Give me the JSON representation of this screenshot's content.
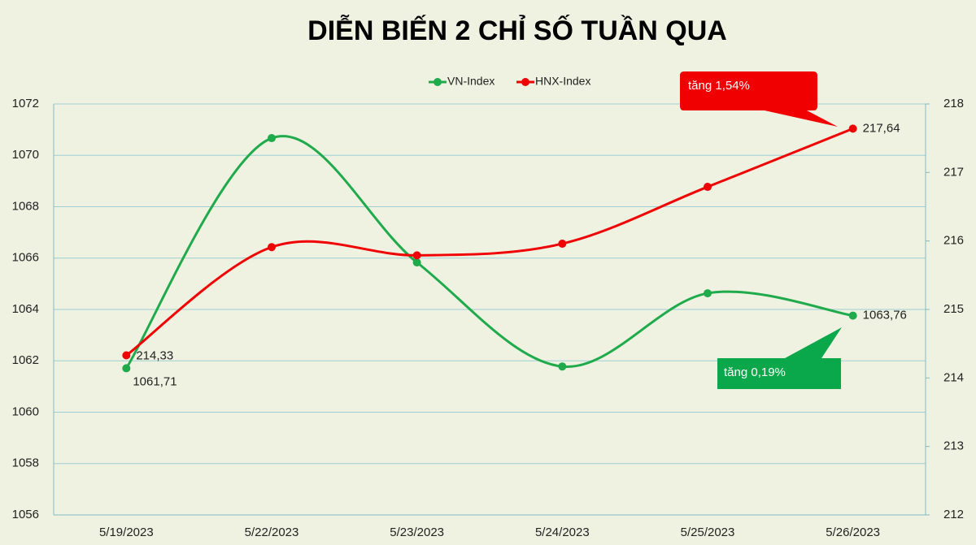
{
  "chart_data": {
    "type": "line",
    "title": "DIỄN BIẾN 2 CHỈ SỐ TUẦN QUA",
    "categories": [
      "5/19/2023",
      "5/22/2023",
      "5/23/2023",
      "5/24/2023",
      "5/25/2023",
      "5/26/2023"
    ],
    "series": [
      {
        "name": "VN-Index",
        "color": "#1faa4b",
        "values": [
          1061.71,
          1070.67,
          1065.83,
          1061.78,
          1064.63,
          1063.76
        ],
        "value_labels": [
          "1061,71",
          null,
          null,
          null,
          null,
          "1063,76"
        ]
      },
      {
        "name": "HNX-Index",
        "color": "#f00000",
        "axis": "y2",
        "values": [
          214.33,
          215.91,
          215.79,
          215.96,
          216.79,
          217.64
        ],
        "value_labels": [
          "214,33",
          null,
          null,
          null,
          null,
          "217,64"
        ]
      }
    ],
    "ylim": [
      1056,
      1072
    ],
    "yticks": [
      1056,
      1058,
      1060,
      1062,
      1064,
      1066,
      1068,
      1070,
      1072
    ],
    "y2lim": [
      212,
      218
    ],
    "y2ticks": [
      212,
      213,
      214,
      215,
      216,
      217,
      218
    ],
    "grid": true,
    "smooth": true,
    "legend": "top",
    "annotations": [
      {
        "text": "tăng 1,54%",
        "color": "#f00000"
      },
      {
        "text": "tăng 0,19%",
        "color": "#0aa84a"
      }
    ]
  }
}
